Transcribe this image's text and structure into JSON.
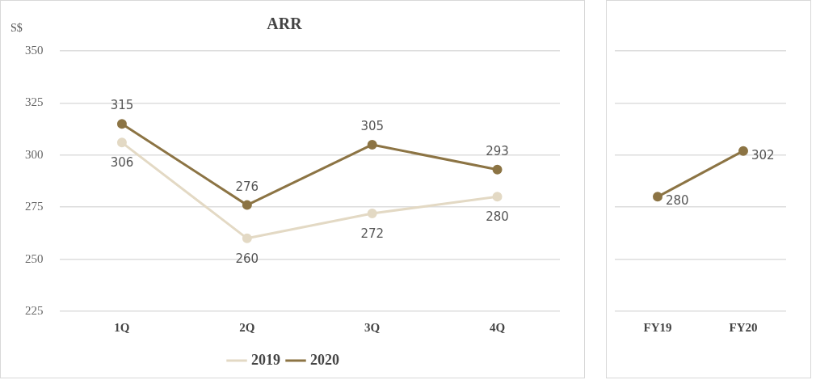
{
  "chart_data": [
    {
      "type": "line",
      "title": "ARR",
      "ylabel": "S$",
      "categories": [
        "1Q",
        "2Q",
        "3Q",
        "4Q"
      ],
      "series": [
        {
          "name": "2019",
          "color": "#e3d9c4",
          "values": [
            306,
            260,
            272,
            280
          ]
        },
        {
          "name": "2020",
          "color": "#8c7444",
          "values": [
            315,
            276,
            305,
            293
          ]
        }
      ],
      "ylim": [
        225,
        350
      ],
      "yticks": [
        225,
        250,
        275,
        300,
        325,
        350
      ],
      "grid": "y",
      "legend": "bottom",
      "marker": "circle",
      "line_style": "solid",
      "data_labels": true
    },
    {
      "type": "line",
      "categories": [
        "FY19",
        "FY20"
      ],
      "series": [
        {
          "color": "#8c7444",
          "values": [
            280,
            302
          ]
        }
      ],
      "ylim": [
        225,
        350
      ],
      "yticks": [
        225,
        250,
        275,
        300,
        325,
        350
      ],
      "grid": "y",
      "tick_labels": "x",
      "marker": "circle",
      "line_style": "solid",
      "data_labels": true
    }
  ]
}
